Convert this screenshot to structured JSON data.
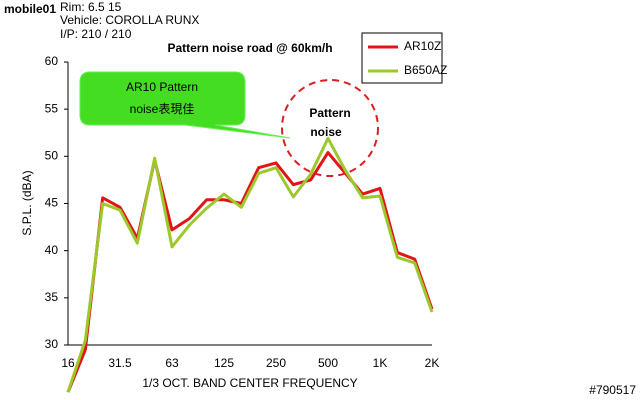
{
  "chart_data": {
    "type": "line",
    "title": "Pattern noise road @ 60km/h",
    "info": [
      "Rim: 6.5 15",
      "Vehicle: COROLLA RUNX",
      "I/P: 210 / 210"
    ],
    "watermark": "mobile01",
    "post_id": "#790517",
    "y_label": "S.P.L. (dBA)",
    "x_label": "1/3 OCT. BAND CENTER FREQUENCY",
    "callout": [
      "AR10 Pattern",
      "noise表現佳"
    ],
    "circle_note": [
      "Pattern",
      "noise"
    ],
    "categories": [
      "16",
      null,
      null,
      "31.5",
      null,
      null,
      "63",
      null,
      null,
      "125",
      null,
      null,
      "250",
      null,
      null,
      "500",
      null,
      null,
      "1K",
      null,
      null,
      "2K"
    ],
    "series": [
      {
        "name": "AR10Z",
        "color": "#e01515",
        "values": [
          25,
          29.5,
          45.6,
          44.6,
          41.3,
          49.6,
          42.2,
          43.4,
          45.4,
          45.4,
          45,
          48.8,
          49.3,
          47,
          47.5,
          50.4,
          48.2,
          46,
          46.6,
          39.8,
          39.1,
          33.8
        ]
      },
      {
        "name": "B650AZ",
        "color": "#9cc82c",
        "values": [
          25,
          30.5,
          45,
          44.3,
          40.8,
          49.8,
          40.4,
          42.7,
          44.5,
          46,
          44.6,
          48.2,
          48.8,
          45.7,
          48.1,
          51.9,
          48.5,
          45.6,
          45.8,
          39.3,
          38.7,
          33.5
        ]
      }
    ],
    "ylim": [
      30,
      60
    ],
    "yticks": [
      30,
      35,
      40,
      45,
      50,
      55,
      60
    ],
    "legend": "top-right"
  }
}
